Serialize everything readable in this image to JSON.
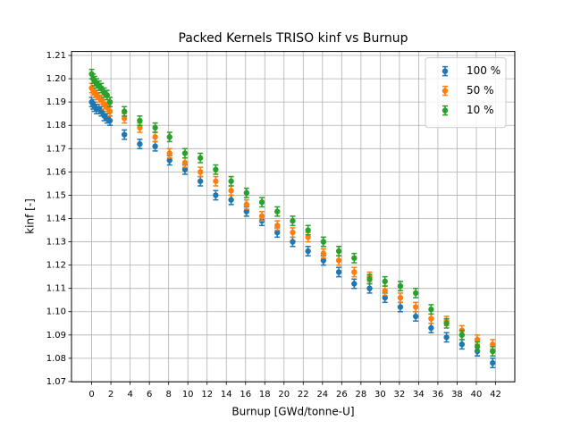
{
  "chart_data": {
    "type": "errorbar",
    "title": "Packed Kernels TRISO kinf vs Burnup",
    "xlabel": "Burnup [GWd/tonne-U]",
    "ylabel": "kinf [-]",
    "x": [
      0,
      0.15,
      0.3,
      0.5,
      0.75,
      1.0,
      1.3,
      1.6,
      1.9,
      3.4,
      5.0,
      6.6,
      8.1,
      9.7,
      11.3,
      12.9,
      14.5,
      16.1,
      17.7,
      19.3,
      20.9,
      22.5,
      24.1,
      25.7,
      27.3,
      28.9,
      30.5,
      32.1,
      33.7,
      35.3,
      36.9,
      38.5,
      40.1,
      41.7
    ],
    "series": [
      {
        "name": "100 %",
        "color": "#1f77b4",
        "error": 0.002,
        "values": [
          1.19,
          1.189,
          1.188,
          1.187,
          1.187,
          1.186,
          1.184,
          1.183,
          1.182,
          1.176,
          1.172,
          1.171,
          1.165,
          1.161,
          1.156,
          1.15,
          1.148,
          1.143,
          1.139,
          1.134,
          1.13,
          1.126,
          1.122,
          1.117,
          1.112,
          1.11,
          1.106,
          1.102,
          1.098,
          1.093,
          1.089,
          1.086,
          1.083,
          1.078
        ]
      },
      {
        "name": "50 %",
        "color": "#ff7f0e",
        "error": 0.002,
        "values": [
          1.196,
          1.195,
          1.194,
          1.193,
          1.192,
          1.191,
          1.189,
          1.188,
          1.186,
          1.183,
          1.179,
          1.175,
          1.168,
          1.164,
          1.16,
          1.156,
          1.152,
          1.146,
          1.141,
          1.137,
          1.134,
          1.132,
          1.125,
          1.122,
          1.117,
          1.115,
          1.109,
          1.106,
          1.102,
          1.097,
          1.096,
          1.092,
          1.088,
          1.086
        ]
      },
      {
        "name": "10 %",
        "color": "#2ca02c",
        "error": 0.002,
        "values": [
          1.202,
          1.2,
          1.199,
          1.198,
          1.197,
          1.196,
          1.194,
          1.193,
          1.19,
          1.186,
          1.182,
          1.179,
          1.175,
          1.168,
          1.166,
          1.161,
          1.156,
          1.151,
          1.147,
          1.143,
          1.139,
          1.135,
          1.13,
          1.126,
          1.123,
          1.114,
          1.113,
          1.111,
          1.108,
          1.101,
          1.095,
          1.09,
          1.085,
          1.083
        ]
      }
    ],
    "xlim": [
      -2.1,
      44.0
    ],
    "ylim": [
      1.0699,
      1.2117
    ],
    "xticks": [
      0,
      2,
      4,
      6,
      8,
      10,
      12,
      14,
      16,
      18,
      20,
      22,
      24,
      26,
      28,
      30,
      32,
      34,
      36,
      38,
      40,
      42
    ],
    "yticks": [
      1.07,
      1.08,
      1.09,
      {
        "value": 1.1,
        "label": "1.10"
      },
      1.11,
      1.12,
      1.13,
      1.14,
      1.15,
      1.16,
      1.17,
      1.18,
      1.19,
      {
        "value": 1.2,
        "label": "1.20"
      },
      1.21
    ],
    "grid": true,
    "legend": "upper right"
  }
}
